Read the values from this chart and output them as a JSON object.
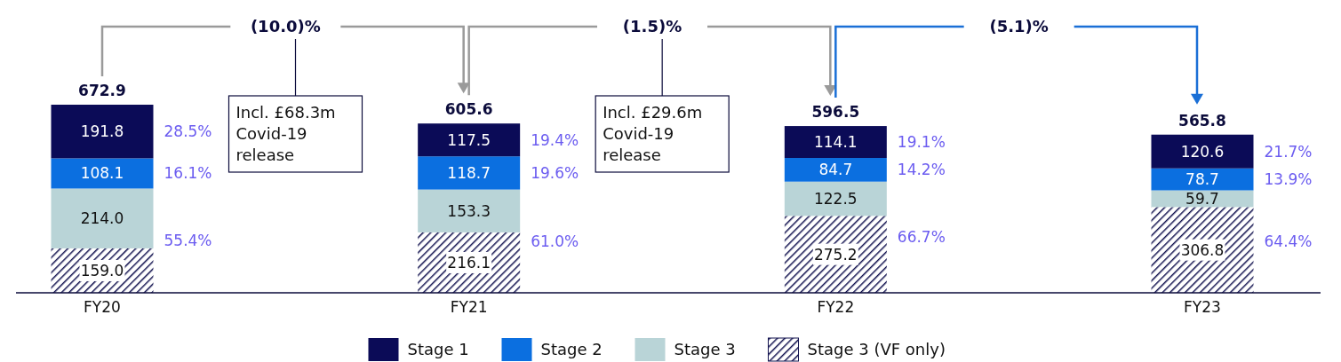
{
  "chart_data": {
    "type": "bar",
    "stacked": true,
    "categories": [
      "FY20",
      "FY21",
      "FY22",
      "FY23"
    ],
    "series": [
      {
        "name": "Stage 3 (VF only)",
        "color": "#12124f",
        "values": [
          159.0,
          216.1,
          275.2,
          306.8
        ],
        "value_labels": [
          "159.0",
          "216.1",
          "275.2",
          "306.8"
        ]
      },
      {
        "name": "Stage 3",
        "color": "#b9d4d7",
        "values": [
          214.0,
          153.3,
          122.5,
          59.7
        ],
        "value_labels": [
          "214.0",
          "153.3",
          "122.5",
          "59.7"
        ]
      },
      {
        "name": "Stage 2",
        "color": "#0b6fe0",
        "values": [
          108.1,
          118.7,
          84.7,
          78.7
        ],
        "value_labels": [
          "108.1",
          "118.7",
          "84.7",
          "78.7"
        ]
      },
      {
        "name": "Stage 1",
        "color": "#0b0b57",
        "values": [
          191.8,
          117.5,
          114.1,
          120.6
        ],
        "value_labels": [
          "191.8",
          "117.5",
          "114.1",
          "120.6"
        ]
      }
    ],
    "totals": [
      "672.9",
      "605.6",
      "596.5",
      "565.8"
    ],
    "legend": "bottom",
    "annotations": [
      "(10.0)%",
      "(1.5)%",
      "(5.1)%",
      "28.5%",
      "16.1%",
      "55.4%",
      "19.4%",
      "19.6%",
      "61.0%",
      "19.1%",
      "14.2%",
      "66.7%",
      "21.7%",
      "13.9%",
      "64.4%",
      "Incl. £68.3m Covid-19 release",
      "Incl. £29.6m Covid-19 release"
    ]
  }
}
